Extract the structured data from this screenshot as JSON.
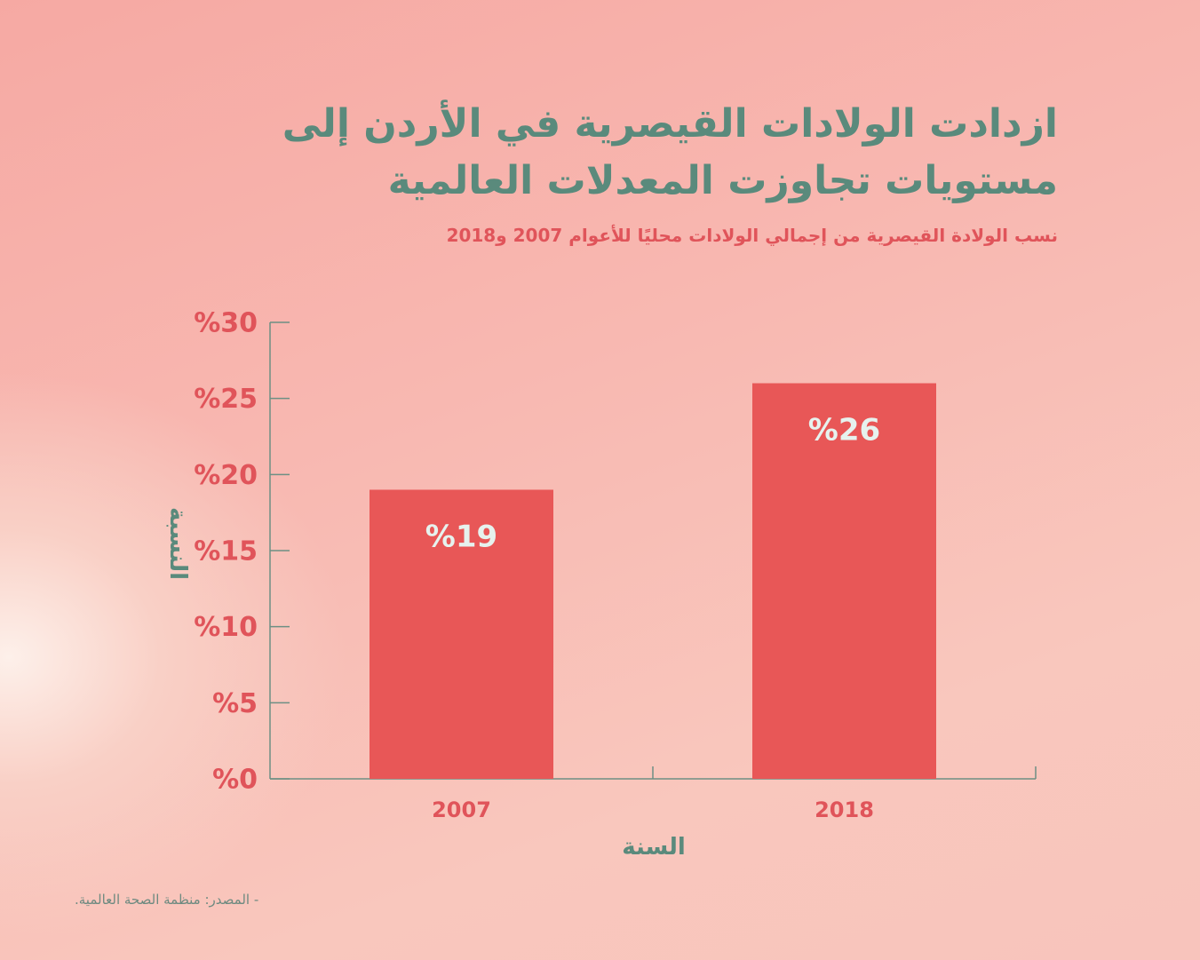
{
  "chart_data": {
    "type": "bar",
    "title": "ازدادت الولادات القيصرية في الأردن إلى مستويات تجاوزت المعدلات العالمية",
    "subtitle": "نسب الولادة القيصرية من إجمالي الولادات محليًا للأعوام 2007 و2018",
    "xlabel": "السنة",
    "ylabel": "النسبة",
    "categories": [
      "2007",
      "2018"
    ],
    "values": [
      19,
      26
    ],
    "data_labels": [
      "%19",
      "%26"
    ],
    "ylim": [
      0,
      30
    ],
    "yticks": [
      0,
      5,
      10,
      15,
      20,
      25,
      30
    ],
    "ytick_labels": [
      "%0",
      "%5",
      "%10",
      "%15",
      "%20",
      "%25",
      "%30"
    ],
    "grid": false,
    "bar_color": "#e85757",
    "source": "- المصدر: منظمة الصحة العالمية."
  }
}
